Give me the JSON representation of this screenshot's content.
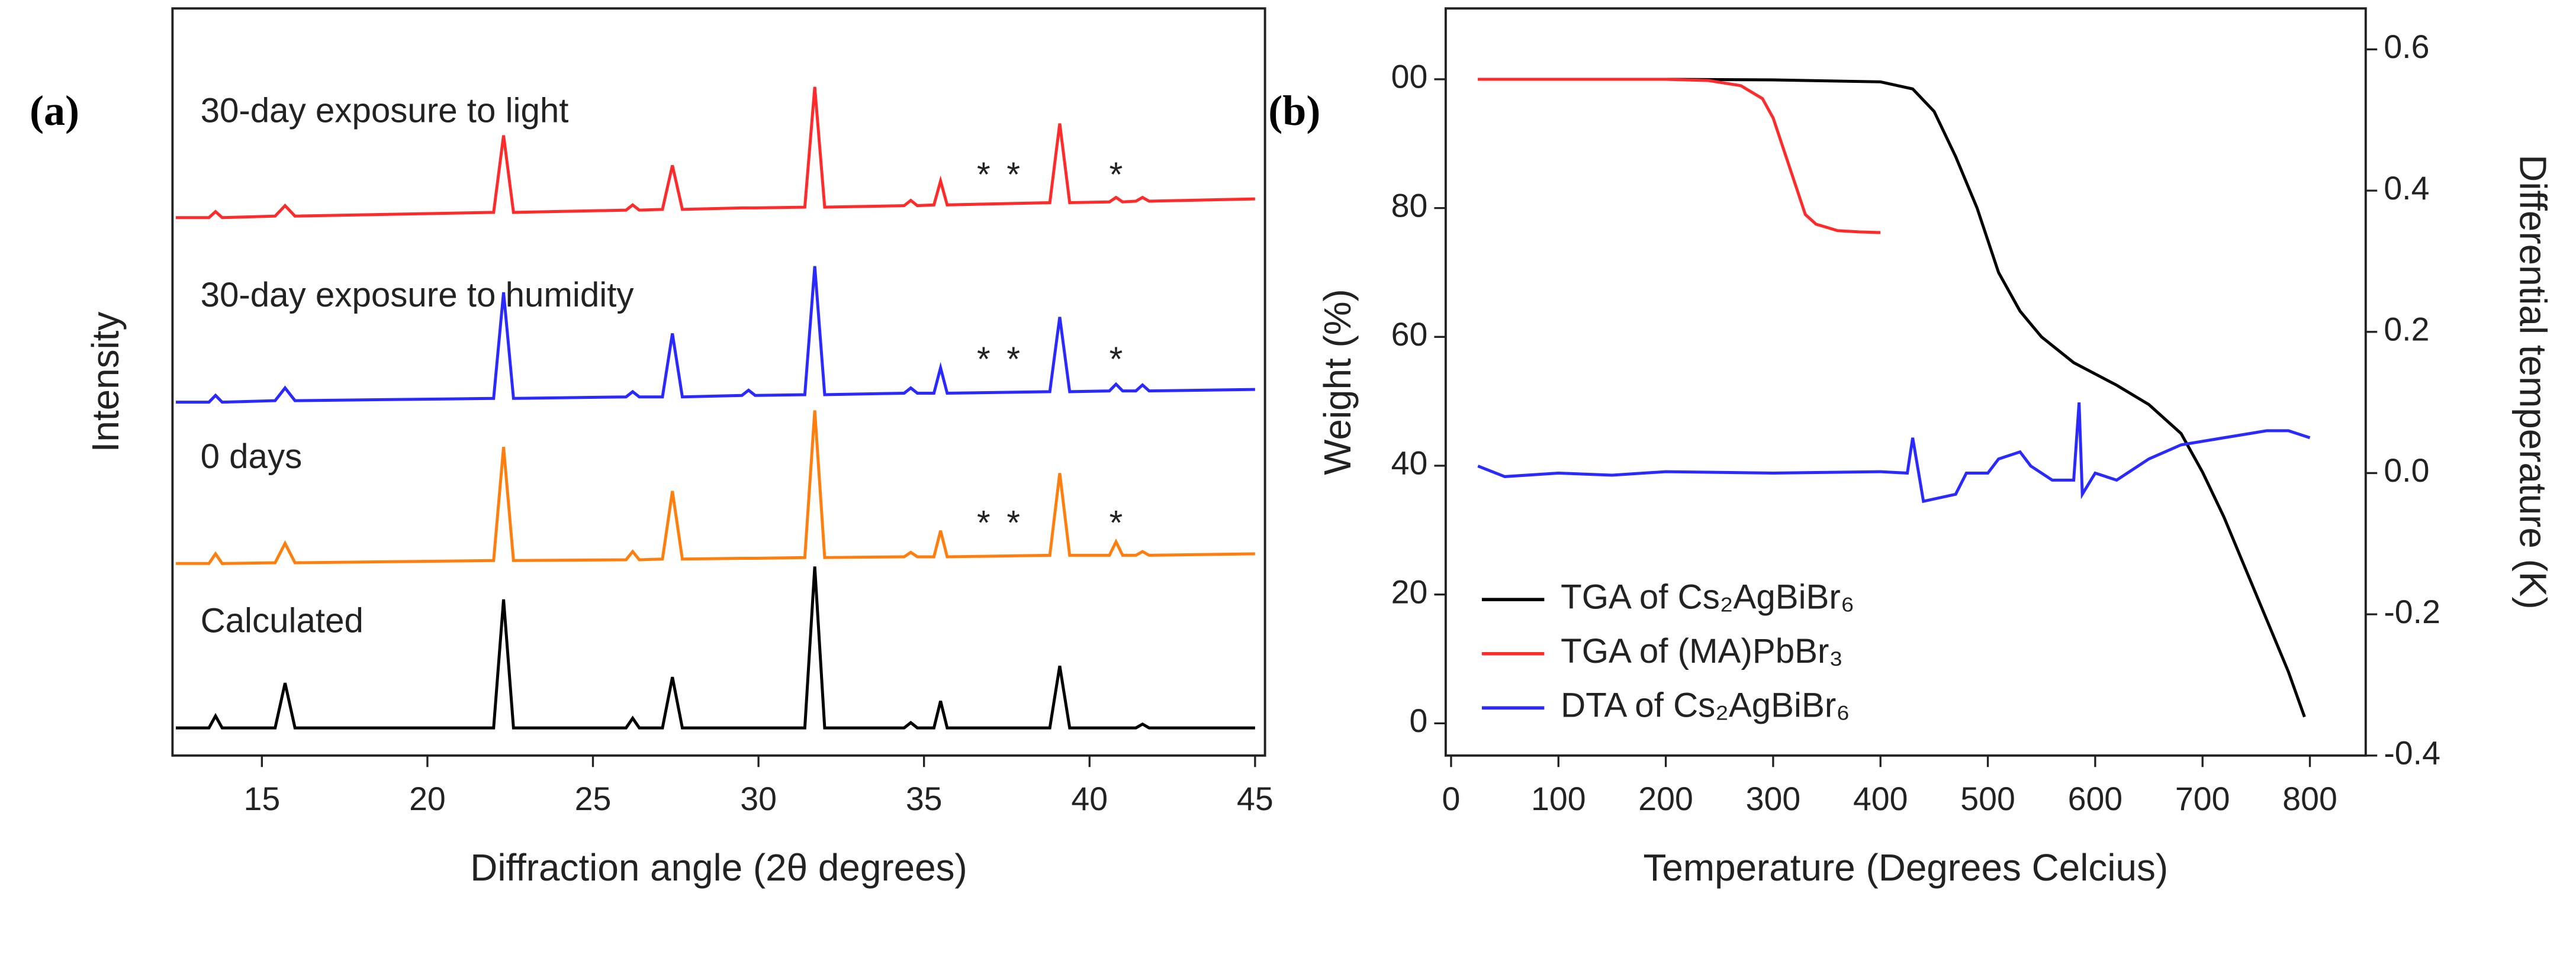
{
  "chart_data": [
    {
      "type": "line",
      "panel_label": "(a)",
      "x_label": "Diffraction angle (2θ degrees)",
      "y_label": "Intensity",
      "xlim": [
        12.3,
        45.3
      ],
      "xticks": [
        15,
        20,
        25,
        30,
        35,
        40,
        45
      ],
      "ylim": [
        0,
        100
      ],
      "x": [
        12.4,
        13.4,
        13.6,
        13.8,
        15.4,
        15.7,
        16.0,
        22.0,
        22.3,
        22.6,
        26.0,
        26.2,
        26.4,
        27.1,
        27.4,
        27.7,
        29.5,
        29.7,
        29.9,
        31.4,
        31.7,
        32.0,
        34.4,
        34.6,
        34.8,
        35.3,
        35.5,
        35.7,
        38.8,
        39.1,
        39.4,
        40.6,
        40.8,
        41.0,
        41.4,
        41.6,
        41.8,
        45.0
      ],
      "series": [
        {
          "name": "30-day exposure to light",
          "color": "#ff2a2a",
          "values": [
            72.0,
            72.0,
            72.8,
            72.0,
            72.2,
            73.6,
            72.2,
            72.7,
            83.0,
            72.7,
            73.0,
            73.7,
            73.0,
            73.1,
            79.0,
            73.1,
            73.3,
            73.3,
            73.3,
            73.4,
            89.5,
            73.4,
            73.6,
            74.3,
            73.6,
            73.7,
            76.9,
            73.7,
            74.0,
            84.6,
            74.0,
            74.1,
            74.7,
            74.1,
            74.2,
            74.7,
            74.2,
            74.5
          ]
        },
        {
          "name": "30-day exposure to humidity",
          "color": "#2a2aff",
          "values": [
            47.3,
            47.3,
            48.2,
            47.3,
            47.5,
            49.2,
            47.5,
            47.8,
            62.0,
            47.8,
            48.0,
            48.7,
            48.0,
            48.0,
            56.5,
            48.0,
            48.2,
            48.9,
            48.2,
            48.3,
            65.5,
            48.3,
            48.5,
            49.2,
            48.5,
            48.5,
            51.9,
            48.5,
            48.7,
            58.7,
            48.7,
            48.8,
            49.7,
            48.8,
            48.8,
            49.6,
            48.8,
            49.0
          ]
        },
        {
          "name": "0 days",
          "color": "#ff7f0e",
          "values": [
            25.7,
            25.7,
            27.0,
            25.7,
            25.8,
            28.4,
            25.8,
            26.1,
            41.3,
            26.1,
            26.2,
            27.3,
            26.2,
            26.3,
            35.4,
            26.3,
            26.4,
            26.4,
            26.4,
            26.5,
            46.2,
            26.5,
            26.6,
            27.2,
            26.6,
            26.6,
            30.1,
            26.6,
            26.8,
            37.8,
            26.8,
            26.8,
            28.6,
            26.8,
            26.8,
            27.3,
            26.8,
            27.0
          ]
        },
        {
          "name": "Calculated",
          "color": "#000000",
          "values": [
            3.7,
            3.7,
            5.3,
            3.7,
            3.7,
            9.7,
            3.7,
            3.7,
            20.9,
            3.7,
            3.7,
            5.0,
            3.7,
            3.7,
            10.5,
            3.7,
            3.7,
            3.7,
            3.7,
            3.7,
            25.3,
            3.7,
            3.7,
            4.4,
            3.7,
            3.7,
            7.3,
            3.7,
            3.7,
            12.0,
            3.7,
            3.7,
            3.7,
            3.7,
            3.7,
            4.2,
            3.7,
            3.7
          ]
        }
      ],
      "annotations": [
        {
          "text": "*",
          "x": 36.8,
          "y": 77.4
        },
        {
          "text": "*",
          "x": 37.7,
          "y": 77.4
        },
        {
          "text": "*",
          "x": 40.8,
          "y": 77.4
        },
        {
          "text": "*",
          "x": 36.8,
          "y": 52.7
        },
        {
          "text": "*",
          "x": 37.7,
          "y": 52.7
        },
        {
          "text": "*",
          "x": 40.8,
          "y": 52.7
        },
        {
          "text": "*",
          "x": 36.8,
          "y": 30.8
        },
        {
          "text": "*",
          "x": 37.7,
          "y": 30.8
        },
        {
          "text": "*",
          "x": 40.8,
          "y": 30.8
        }
      ]
    },
    {
      "type": "line",
      "panel_label": "(b)",
      "x_label": "Temperature (Degrees Celcius)",
      "y_label": "Weight (%)",
      "y2_label": "Differential temperature (K)",
      "xlim": [
        -5,
        852
      ],
      "xticks": [
        0,
        100,
        200,
        300,
        400,
        500,
        600,
        700,
        800
      ],
      "ylim": [
        -5,
        111
      ],
      "yticks": [
        0,
        20,
        40,
        60,
        80,
        {
          "value": 100,
          "label": "00"
        }
      ],
      "y2lim": [
        -0.4,
        0.658
      ],
      "y2ticks": [
        -0.4,
        -0.2,
        {
          "value": 0,
          "label": "0.0"
        },
        0.2,
        0.4,
        0.6
      ],
      "legend": "lower left",
      "series": [
        {
          "name": "TGA of Cs₂AgBiBr₆",
          "color": "#000000",
          "x": [
            25,
            200,
            300,
            400,
            430,
            450,
            470,
            490,
            510,
            530,
            550,
            580,
            620,
            650,
            680,
            700,
            720,
            740,
            760,
            780,
            795
          ],
          "values": [
            100,
            100,
            99.9,
            99.6,
            98.5,
            95,
            88,
            80,
            70,
            64,
            60,
            56,
            52.5,
            49.5,
            45,
            39,
            32,
            24,
            16,
            8,
            1
          ]
        },
        {
          "name": "TGA of (MA)PbBr₃",
          "color": "#ff2a2a",
          "x": [
            25,
            200,
            240,
            270,
            290,
            300,
            310,
            320,
            330,
            340,
            350,
            360,
            380,
            400
          ],
          "values": [
            100,
            100,
            99.8,
            99,
            97,
            94,
            89,
            84,
            79,
            77.5,
            77,
            76.5,
            76.3,
            76.2
          ]
        },
        {
          "name": "DTA of Cs₂AgBiBr₆",
          "color": "#2a2aff",
          "axis": "y2",
          "x": [
            25,
            50,
            100,
            150,
            200,
            300,
            400,
            425,
            430,
            440,
            470,
            480,
            500,
            510,
            530,
            540,
            560,
            580,
            585,
            588,
            600,
            620,
            650,
            680,
            720,
            760,
            780,
            800
          ],
          "values": [
            0.01,
            -0.005,
            0.0,
            -0.003,
            0.002,
            0.0,
            0.002,
            0.0,
            0.05,
            -0.04,
            -0.03,
            0.0,
            0.0,
            0.02,
            0.03,
            0.01,
            -0.01,
            -0.01,
            0.1,
            -0.03,
            0.0,
            -0.01,
            0.02,
            0.04,
            0.05,
            0.06,
            0.06,
            0.05
          ]
        }
      ]
    }
  ]
}
